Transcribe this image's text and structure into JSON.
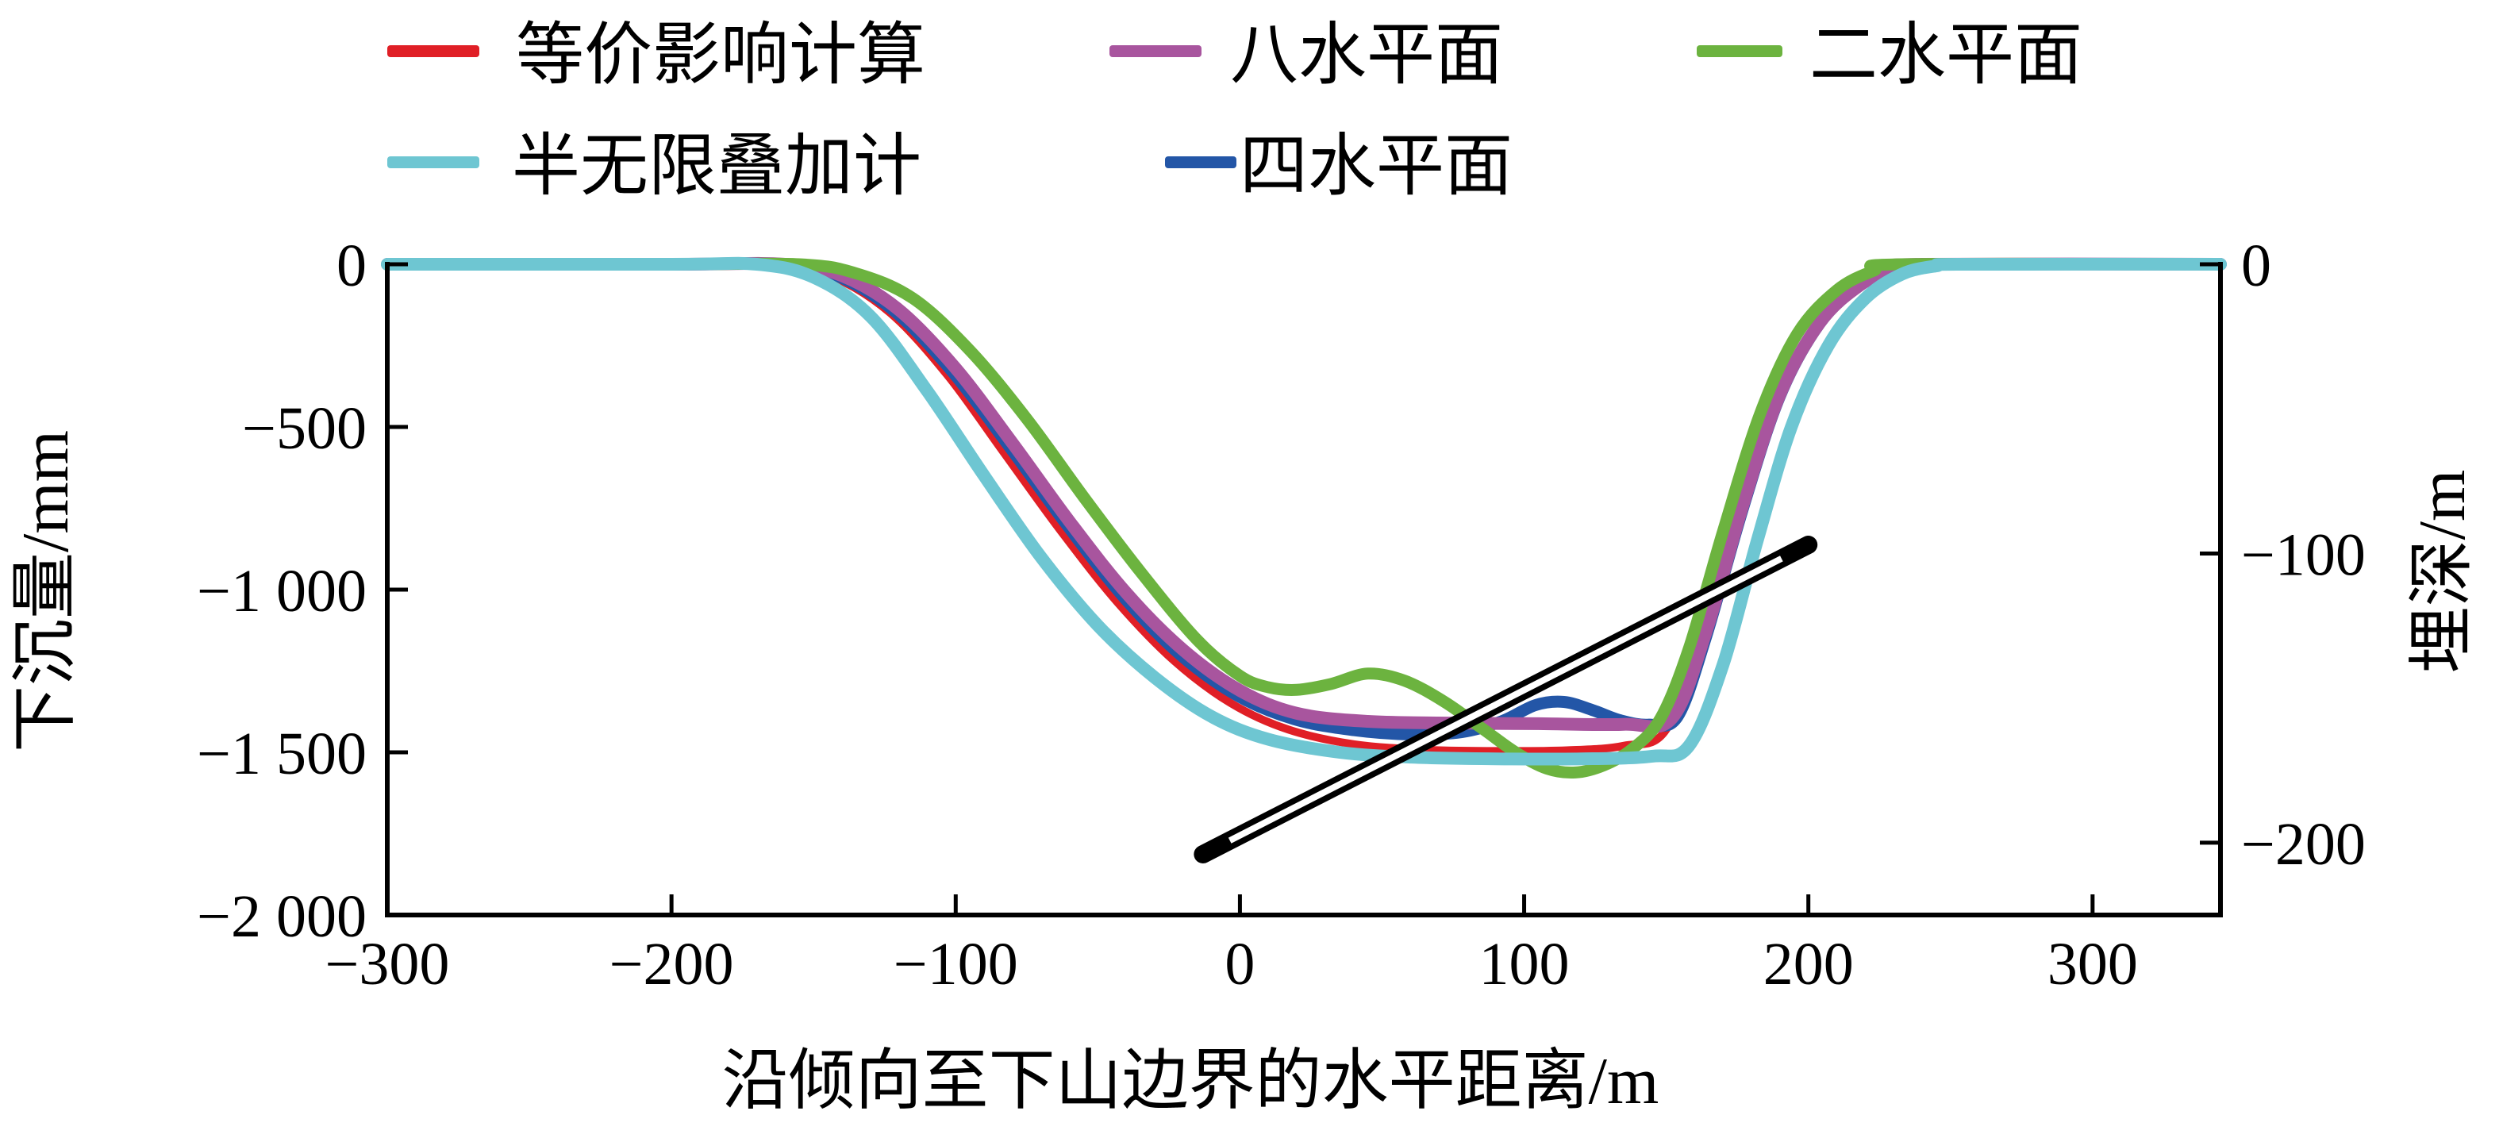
{
  "chart_data": {
    "type": "line",
    "title": "",
    "xlabel": "沿倾向至下山边界的水平距离/m",
    "ylabel_left": "下沉量/mm",
    "ylabel_right": "埋深/m",
    "grid": false,
    "legend_position": "top",
    "x_range": [
      -300,
      345
    ],
    "y_left_range": [
      -2000,
      0
    ],
    "y_right_range": [
      -225,
      0
    ],
    "x_ticks": [
      {
        "value": -300,
        "label": "−300"
      },
      {
        "value": -200,
        "label": "−200"
      },
      {
        "value": -100,
        "label": "−100"
      },
      {
        "value": 0,
        "label": "0"
      },
      {
        "value": 100,
        "label": "100"
      },
      {
        "value": 200,
        "label": "200"
      },
      {
        "value": 300,
        "label": "300"
      }
    ],
    "y_left_ticks": [
      {
        "value": 0,
        "label": "0"
      },
      {
        "value": -500,
        "label": "−500"
      },
      {
        "value": -1000,
        "label": "−1 000"
      },
      {
        "value": -1500,
        "label": "−1 500"
      },
      {
        "value": -2000,
        "label": "−2 000"
      }
    ],
    "y_right_ticks": [
      {
        "value": 0,
        "label": "0"
      },
      {
        "value": -100,
        "label": "−100"
      },
      {
        "value": -200,
        "label": "−200"
      }
    ],
    "series": [
      {
        "name": "等价影响计算",
        "color": "#e01f26",
        "width": 10,
        "points": [
          [
            -300,
            0
          ],
          [
            -200,
            0
          ],
          [
            -163,
            0
          ],
          [
            -143,
            -40
          ],
          [
            -123,
            -150
          ],
          [
            -103,
            -340
          ],
          [
            -83,
            -580
          ],
          [
            -63,
            -820
          ],
          [
            -43,
            -1040
          ],
          [
            -23,
            -1220
          ],
          [
            -3,
            -1350
          ],
          [
            17,
            -1430
          ],
          [
            40,
            -1475
          ],
          [
            65,
            -1492
          ],
          [
            90,
            -1496
          ],
          [
            115,
            -1494
          ],
          [
            135,
            -1480
          ],
          [
            150,
            -1430
          ],
          [
            163,
            -1120
          ],
          [
            176,
            -720
          ],
          [
            190,
            -390
          ],
          [
            204,
            -175
          ],
          [
            218,
            -60
          ],
          [
            230,
            -12
          ],
          [
            240,
            0
          ],
          [
            345,
            0
          ]
        ]
      },
      {
        "name": "四水平面",
        "color": "#2356a7",
        "width": 15,
        "points": [
          [
            -300,
            0
          ],
          [
            -200,
            0
          ],
          [
            -161,
            0
          ],
          [
            -141,
            -38
          ],
          [
            -121,
            -148
          ],
          [
            -101,
            -332
          ],
          [
            -81,
            -562
          ],
          [
            -61,
            -800
          ],
          [
            -41,
            -1022
          ],
          [
            -21,
            -1200
          ],
          [
            -1,
            -1325
          ],
          [
            19,
            -1398
          ],
          [
            40,
            -1432
          ],
          [
            60,
            -1445
          ],
          [
            78,
            -1438
          ],
          [
            92,
            -1405
          ],
          [
            104,
            -1355
          ],
          [
            114,
            -1345
          ],
          [
            124,
            -1370
          ],
          [
            134,
            -1402
          ],
          [
            144,
            -1415
          ],
          [
            154,
            -1390
          ],
          [
            164,
            -1145
          ],
          [
            177,
            -750
          ],
          [
            190,
            -405
          ],
          [
            204,
            -182
          ],
          [
            218,
            -66
          ],
          [
            230,
            -16
          ],
          [
            240,
            0
          ],
          [
            345,
            0
          ]
        ]
      },
      {
        "name": "八水平面",
        "color": "#a8559e",
        "width": 16,
        "points": [
          [
            -300,
            0
          ],
          [
            -200,
            0
          ],
          [
            -160,
            0
          ],
          [
            -140,
            -35
          ],
          [
            -120,
            -140
          ],
          [
            -100,
            -320
          ],
          [
            -80,
            -550
          ],
          [
            -60,
            -790
          ],
          [
            -40,
            -1010
          ],
          [
            -20,
            -1185
          ],
          [
            0,
            -1310
          ],
          [
            20,
            -1380
          ],
          [
            45,
            -1405
          ],
          [
            75,
            -1410
          ],
          [
            105,
            -1412
          ],
          [
            135,
            -1414
          ],
          [
            152,
            -1395
          ],
          [
            164,
            -1130
          ],
          [
            177,
            -740
          ],
          [
            190,
            -400
          ],
          [
            204,
            -180
          ],
          [
            218,
            -65
          ],
          [
            230,
            -15
          ],
          [
            240,
            0
          ],
          [
            345,
            0
          ]
        ]
      },
      {
        "name": "二水平面",
        "color": "#6cb33f",
        "width": 15,
        "points": [
          [
            -300,
            0
          ],
          [
            -200,
            0
          ],
          [
            -155,
            0
          ],
          [
            -135,
            -28
          ],
          [
            -115,
            -105
          ],
          [
            -95,
            -265
          ],
          [
            -75,
            -475
          ],
          [
            -55,
            -715
          ],
          [
            -35,
            -945
          ],
          [
            -15,
            -1155
          ],
          [
            0,
            -1265
          ],
          [
            10,
            -1300
          ],
          [
            20,
            -1308
          ],
          [
            32,
            -1290
          ],
          [
            45,
            -1258
          ],
          [
            58,
            -1280
          ],
          [
            72,
            -1345
          ],
          [
            85,
            -1425
          ],
          [
            97,
            -1500
          ],
          [
            108,
            -1550
          ],
          [
            118,
            -1562
          ],
          [
            128,
            -1540
          ],
          [
            138,
            -1490
          ],
          [
            148,
            -1395
          ],
          [
            158,
            -1180
          ],
          [
            170,
            -820
          ],
          [
            183,
            -460
          ],
          [
            196,
            -215
          ],
          [
            210,
            -80
          ],
          [
            223,
            -20
          ],
          [
            233,
            0
          ],
          [
            345,
            0
          ]
        ]
      },
      {
        "name": "半无限叠加计",
        "color": "#6ec6d2",
        "width": 16,
        "points": [
          [
            -300,
            0
          ],
          [
            -200,
            0
          ],
          [
            -170,
            0
          ],
          [
            -150,
            -40
          ],
          [
            -130,
            -160
          ],
          [
            -110,
            -390
          ],
          [
            -90,
            -650
          ],
          [
            -70,
            -900
          ],
          [
            -50,
            -1110
          ],
          [
            -30,
            -1270
          ],
          [
            -10,
            -1390
          ],
          [
            10,
            -1460
          ],
          [
            35,
            -1500
          ],
          [
            60,
            -1515
          ],
          [
            90,
            -1520
          ],
          [
            120,
            -1520
          ],
          [
            145,
            -1512
          ],
          [
            158,
            -1480
          ],
          [
            170,
            -1230
          ],
          [
            182,
            -850
          ],
          [
            194,
            -500
          ],
          [
            207,
            -250
          ],
          [
            220,
            -105
          ],
          [
            233,
            -30
          ],
          [
            245,
            -5
          ],
          [
            255,
            0
          ],
          [
            345,
            0
          ]
        ]
      }
    ],
    "depth_line": {
      "style": "double-line",
      "color": "#000000",
      "axis": "right",
      "points": [
        [
          -13,
          -204
        ],
        [
          200,
          -97
        ]
      ]
    }
  },
  "legend": {
    "rows": [
      [
        {
          "label": "等价影响计算",
          "color": "#e01f26"
        },
        {
          "label": "八水平面",
          "color": "#a8559e"
        },
        {
          "label": "二水平面",
          "color": "#6cb33f"
        }
      ],
      [
        {
          "label": "半无限叠加计",
          "color": "#6ec6d2"
        },
        {
          "label": "四水平面",
          "color": "#2356a7"
        }
      ]
    ]
  }
}
